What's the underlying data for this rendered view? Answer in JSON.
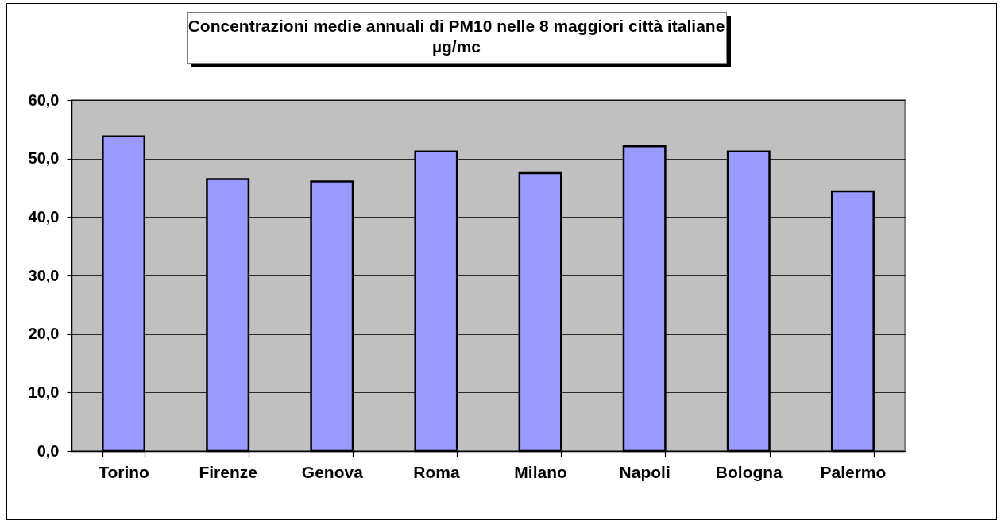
{
  "chart_data": {
    "type": "bar",
    "title": "Concentrazioni medie annuali di PM10 nelle 8 maggiori città italiane",
    "subtitle": "µg/mc",
    "categories": [
      "Torino",
      "Firenze",
      "Genova",
      "Roma",
      "Milano",
      "Napoli",
      "Bologna",
      "Palermo"
    ],
    "values": [
      53.8,
      46.5,
      46.1,
      51.2,
      47.5,
      52.1,
      51.2,
      44.4
    ],
    "color": "#9999ff",
    "ylim": [
      0,
      60
    ],
    "yticks": [
      {
        "value": 0,
        "label": "0,0"
      },
      {
        "value": 10,
        "label": "10,0"
      },
      {
        "value": 20,
        "label": "20,0"
      },
      {
        "value": 30,
        "label": "30,0"
      },
      {
        "value": 40,
        "label": "40,0"
      },
      {
        "value": 50,
        "label": "50,0"
      },
      {
        "value": 60,
        "label": "60,0"
      }
    ],
    "grid": "y"
  }
}
